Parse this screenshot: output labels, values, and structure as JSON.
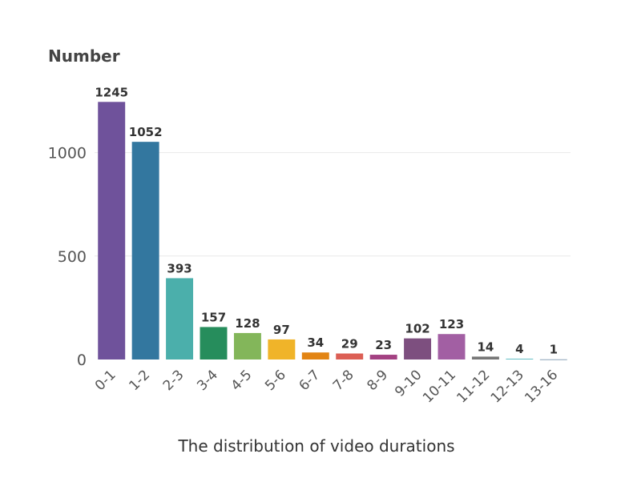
{
  "chart_data": {
    "type": "bar",
    "title": "",
    "ylabel": "Number",
    "xlabel": "The distribution of video durations",
    "ylim": [
      0,
      1250
    ],
    "yticks": [
      0,
      500,
      1000
    ],
    "grid": true,
    "categories": [
      "0-1",
      "1-2",
      "2-3",
      "3-4",
      "4-5",
      "5-6",
      "6-7",
      "7-8",
      "8-9",
      "9-10",
      "10-11",
      "11-12",
      "12-13",
      "13-16"
    ],
    "values": [
      1245,
      1052,
      393,
      157,
      128,
      97,
      34,
      29,
      23,
      102,
      123,
      14,
      4,
      1
    ],
    "data_labels": [
      "1245",
      "1052",
      "393",
      "157",
      "128",
      "97",
      "34",
      "29",
      "23",
      "102",
      "123",
      "14",
      "4",
      "1"
    ],
    "colors": [
      "#6f529b",
      "#33779f",
      "#4bafab",
      "#268d5c",
      "#83b65a",
      "#f0b429",
      "#e28413",
      "#dc5f55",
      "#a34182",
      "#7d4f7f",
      "#a25fa3",
      "#777777",
      "#69c1c7",
      "#8aa3b7"
    ]
  }
}
